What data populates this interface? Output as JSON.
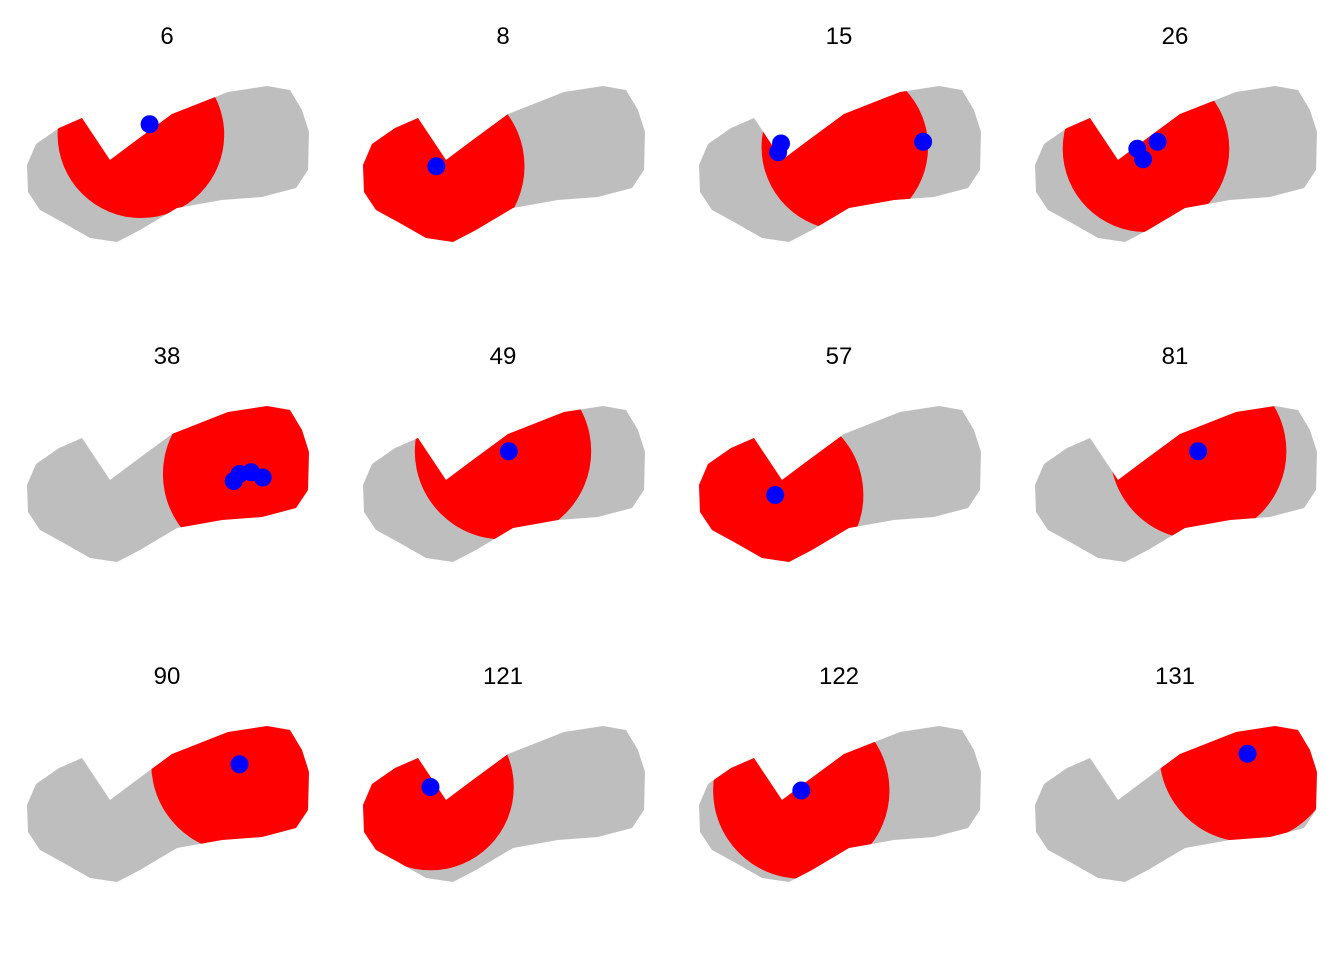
{
  "colors": {
    "region": "#bebebe",
    "selected": "#ff0000",
    "point": "#0000ff",
    "background": "#ffffff"
  },
  "chart_data": {
    "type": "scatter",
    "layout": "small multiples, 3 rows x 4 columns",
    "panel_titles": [
      "6",
      "8",
      "15",
      "26",
      "38",
      "49",
      "57",
      "81",
      "90",
      "121",
      "122",
      "131"
    ],
    "panels": [
      {
        "title": "6",
        "region_shape": "sector",
        "region_center": [
          0.41,
          0.63
        ],
        "region_radius": 0.17,
        "points": [
          [
            0.44,
            0.69
          ]
        ]
      },
      {
        "title": "8",
        "region_shape": "sector",
        "region_center": [
          0.27,
          0.45
        ],
        "region_radius": 0.18,
        "points": [
          [
            0.27,
            0.45
          ]
        ]
      },
      {
        "title": "15",
        "region_shape": "disk",
        "region_center": [
          0.52,
          0.56
        ],
        "region_radius": 0.17,
        "points": [
          [
            0.3,
            0.58
          ],
          [
            0.29,
            0.53
          ],
          [
            0.79,
            0.59
          ]
        ]
      },
      {
        "title": "26",
        "region_shape": "disk",
        "region_center": [
          0.4,
          0.55
        ],
        "region_radius": 0.17,
        "points": [
          [
            0.44,
            0.59
          ],
          [
            0.37,
            0.55
          ],
          [
            0.39,
            0.49
          ]
        ]
      },
      {
        "title": "38",
        "region_shape": "disk",
        "region_center": [
          0.79,
          0.52
        ],
        "region_radius": 0.18,
        "points": [
          [
            0.73,
            0.48
          ],
          [
            0.75,
            0.52
          ],
          [
            0.79,
            0.53
          ],
          [
            0.83,
            0.5
          ]
        ]
      },
      {
        "title": "49",
        "region_shape": "disk",
        "region_center": [
          0.5,
          0.65
        ],
        "region_radius": 0.18,
        "points": [
          [
            0.52,
            0.65
          ]
        ]
      },
      {
        "title": "57",
        "region_shape": "sector",
        "region_center": [
          0.28,
          0.4
        ],
        "region_radius": 0.18,
        "points": [
          [
            0.28,
            0.4
          ]
        ]
      },
      {
        "title": "81",
        "region_shape": "disk",
        "region_center": [
          0.58,
          0.65
        ],
        "region_radius": 0.18,
        "points": [
          [
            0.58,
            0.65
          ]
        ]
      },
      {
        "title": "90",
        "region_shape": "sector",
        "region_center": [
          0.75,
          0.69
        ],
        "region_radius": 0.18,
        "points": [
          [
            0.75,
            0.69
          ]
        ]
      },
      {
        "title": "121",
        "region_shape": "sector",
        "region_center": [
          0.25,
          0.56
        ],
        "region_radius": 0.17,
        "points": [
          [
            0.25,
            0.56
          ]
        ]
      },
      {
        "title": "122",
        "region_shape": "sector",
        "region_center": [
          0.37,
          0.54
        ],
        "region_radius": 0.18,
        "points": [
          [
            0.37,
            0.54
          ]
        ]
      },
      {
        "title": "131",
        "region_shape": "sector",
        "region_center": [
          0.75,
          0.75
        ],
        "region_radius": 0.18,
        "points": [
          [
            0.75,
            0.75
          ]
        ]
      }
    ]
  }
}
